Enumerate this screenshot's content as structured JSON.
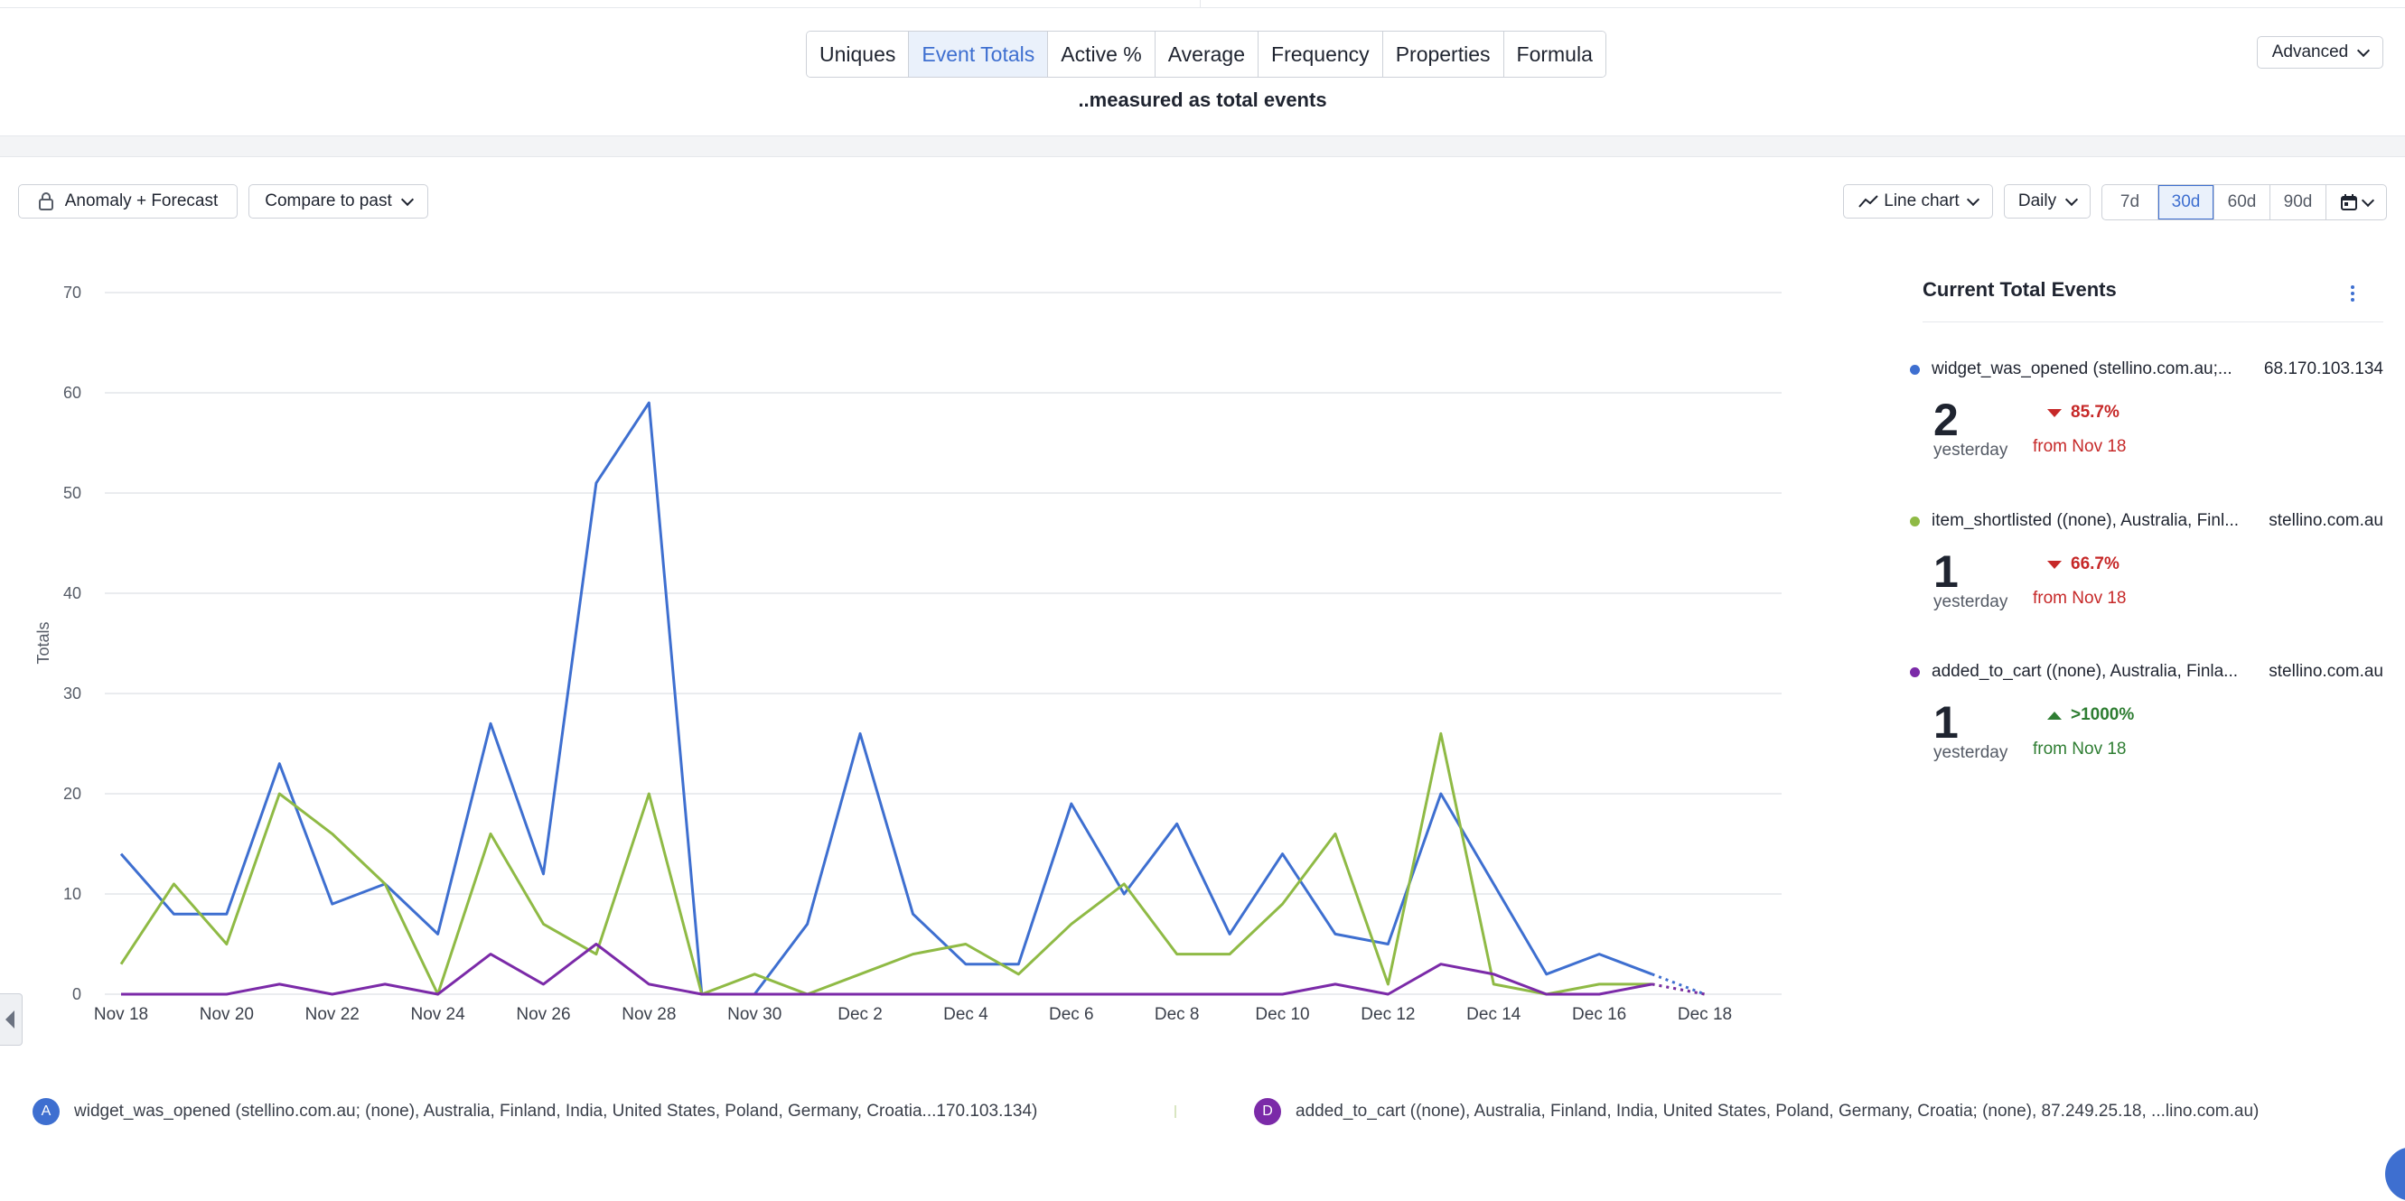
{
  "metric_tabs": [
    {
      "label": "Uniques",
      "active": false
    },
    {
      "label": "Event Totals",
      "active": true
    },
    {
      "label": "Active %",
      "active": false
    },
    {
      "label": "Average",
      "active": false
    },
    {
      "label": "Frequency",
      "active": false
    },
    {
      "label": "Properties",
      "active": false
    },
    {
      "label": "Formula",
      "active": false
    }
  ],
  "measured_label": "..measured as total events",
  "advanced_label": "Advanced",
  "toolbar": {
    "anomaly_label": "Anomaly + Forecast",
    "compare_label": "Compare to past",
    "chart_type_label": "Line chart",
    "interval_label": "Daily",
    "ranges": [
      {
        "label": "7d",
        "active": false
      },
      {
        "label": "30d",
        "active": true
      },
      {
        "label": "60d",
        "active": false
      },
      {
        "label": "90d",
        "active": false
      }
    ]
  },
  "panel": {
    "title": "Current Total Events",
    "series": [
      {
        "name": "widget_was_opened (stellino.com.au;...",
        "host": "68.170.103.134",
        "color": "#3e6fd0",
        "value": "2",
        "when": "yesterday",
        "change": "85.7%",
        "direction": "down",
        "from": "from Nov 18"
      },
      {
        "name": "item_shortlisted ((none), Australia, Finl...",
        "host": "stellino.com.au",
        "color": "#8fba45",
        "value": "1",
        "when": "yesterday",
        "change": "66.7%",
        "direction": "down",
        "from": "from Nov 18"
      },
      {
        "name": "added_to_cart ((none), Australia, Finla...",
        "host": "stellino.com.au",
        "color": "#7b2aa8",
        "value": "1",
        "when": "yesterday",
        "change": ">1000%",
        "direction": "up",
        "from": "from Nov 18"
      }
    ]
  },
  "legend": [
    {
      "badge": "A",
      "color": "#3e6fd0",
      "text": "widget_was_opened (stellino.com.au; (none), Australia, Finland, India, United States, Poland, Germany, Croatia...170.103.134)"
    },
    {
      "badge": "D",
      "color": "#7b2aa8",
      "text": "added_to_cart ((none), Australia, Finland, India, United States, Poland, Germany, Croatia; (none), 87.249.25.18, ...lino.com.au)"
    }
  ],
  "chart_data": {
    "type": "line",
    "ylabel": "Totals",
    "ylim": [
      0,
      70
    ],
    "yticks": [
      0,
      10,
      20,
      30,
      40,
      50,
      60,
      70
    ],
    "x_tick_labels": [
      "Nov 18",
      "Nov 20",
      "Nov 22",
      "Nov 24",
      "Nov 26",
      "Nov 28",
      "Nov 30",
      "Dec 2",
      "Dec 4",
      "Dec 6",
      "Dec 8",
      "Dec 10",
      "Dec 12",
      "Dec 14",
      "Dec 16",
      "Dec 18"
    ],
    "x": [
      "Nov 18",
      "Nov 19",
      "Nov 20",
      "Nov 21",
      "Nov 22",
      "Nov 23",
      "Nov 24",
      "Nov 25",
      "Nov 26",
      "Nov 27",
      "Nov 28",
      "Nov 29",
      "Nov 30",
      "Dec 1",
      "Dec 2",
      "Dec 3",
      "Dec 4",
      "Dec 5",
      "Dec 6",
      "Dec 7",
      "Dec 8",
      "Dec 9",
      "Dec 10",
      "Dec 11",
      "Dec 12",
      "Dec 13",
      "Dec 14",
      "Dec 15",
      "Dec 16",
      "Dec 17",
      "Dec 18"
    ],
    "grid": true,
    "series": [
      {
        "name": "widget_was_opened",
        "color": "#3e6fd0",
        "values": [
          14,
          8,
          8,
          23,
          9,
          11,
          6,
          27,
          12,
          51,
          59,
          0,
          0,
          7,
          26,
          8,
          3,
          3,
          19,
          10,
          17,
          6,
          14,
          6,
          5,
          20,
          11,
          2,
          4,
          2,
          0
        ]
      },
      {
        "name": "item_shortlisted",
        "color": "#8fba45",
        "values": [
          3,
          11,
          5,
          20,
          16,
          11,
          0,
          16,
          7,
          4,
          20,
          0,
          2,
          0,
          2,
          4,
          5,
          2,
          7,
          11,
          4,
          4,
          9,
          16,
          1,
          26,
          1,
          0,
          1,
          1,
          0
        ]
      },
      {
        "name": "added_to_cart",
        "color": "#7b2aa8",
        "values": [
          0,
          0,
          0,
          1,
          0,
          1,
          0,
          4,
          1,
          5,
          1,
          0,
          0,
          0,
          0,
          0,
          0,
          0,
          0,
          0,
          0,
          0,
          0,
          1,
          0,
          3,
          2,
          0,
          0,
          1,
          0
        ]
      }
    ]
  }
}
